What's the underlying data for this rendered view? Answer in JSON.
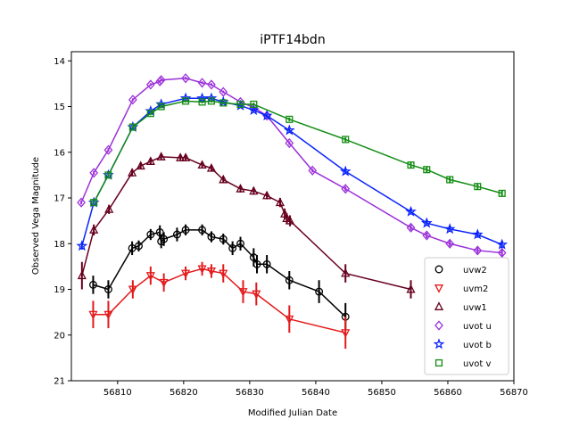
{
  "chart_data": {
    "type": "scatter",
    "title": "iPTF14bdn",
    "xlabel": "Modified Julian Date",
    "ylabel": "Observed Vega Magnitude",
    "xlim": [
      56803,
      56870
    ],
    "ylim": [
      21,
      13.8
    ],
    "y_inverted": true,
    "grid": false,
    "legend_position": "lower-right",
    "xticks": [
      56810,
      56820,
      56830,
      56840,
      56850,
      56860,
      56870
    ],
    "yticks": [
      14,
      15,
      16,
      17,
      18,
      19,
      20,
      21
    ],
    "series": [
      {
        "name": "uvw2",
        "color": "#000000",
        "marker": "circle",
        "x": [
          56806.3,
          56808.6,
          56812.2,
          56813.2,
          56815.0,
          56816.4,
          56816.6,
          56817.0,
          56819.0,
          56820.3,
          56822.8,
          56824.2,
          56826.0,
          56827.4,
          56828.6,
          56830.6,
          56831.1,
          56832.6,
          56836.0,
          56840.5,
          56844.5
        ],
        "y": [
          18.9,
          19.0,
          18.1,
          18.05,
          17.8,
          17.75,
          17.95,
          17.9,
          17.8,
          17.7,
          17.7,
          17.85,
          17.9,
          18.1,
          18.0,
          18.3,
          18.45,
          18.45,
          18.8,
          19.05,
          19.6
        ],
        "yerr": [
          0.2,
          0.2,
          0.15,
          0.12,
          0.12,
          0.15,
          0.15,
          0.15,
          0.15,
          0.12,
          0.12,
          0.12,
          0.12,
          0.15,
          0.15,
          0.2,
          0.2,
          0.2,
          0.2,
          0.25,
          0.3
        ]
      },
      {
        "name": "uvm2",
        "color": "#e31a1c",
        "marker": "triangle-down",
        "x": [
          56806.3,
          56808.6,
          56812.3,
          56815.0,
          56817.0,
          56820.3,
          56822.8,
          56824.2,
          56826.0,
          56829.0,
          56831.0,
          56836.0,
          56844.5
        ],
        "y": [
          19.55,
          19.55,
          19.0,
          18.7,
          18.85,
          18.65,
          18.55,
          18.6,
          18.65,
          19.05,
          19.1,
          19.65,
          19.95
        ],
        "yerr": [
          0.3,
          0.3,
          0.2,
          0.2,
          0.2,
          0.15,
          0.15,
          0.15,
          0.2,
          0.25,
          0.25,
          0.3,
          0.35
        ]
      },
      {
        "name": "uvw1",
        "color": "#67001f",
        "marker": "triangle-up",
        "x": [
          56804.6,
          56806.4,
          56808.7,
          56812.2,
          56813.5,
          56815.0,
          56816.6,
          56819.5,
          56820.3,
          56822.8,
          56824.2,
          56826.0,
          56828.6,
          56830.6,
          56832.6,
          56834.6,
          56835.3,
          56835.6,
          56836.1,
          56844.5,
          56854.4
        ],
        "y": [
          18.7,
          17.7,
          17.25,
          16.45,
          16.3,
          16.2,
          16.1,
          16.12,
          16.12,
          16.28,
          16.35,
          16.6,
          16.8,
          16.85,
          16.95,
          17.1,
          17.35,
          17.45,
          17.5,
          18.65,
          19.0
        ],
        "yerr": [
          0.3,
          0.12,
          0.1,
          0.08,
          0.07,
          0.07,
          0.06,
          0.06,
          0.06,
          0.06,
          0.06,
          0.07,
          0.08,
          0.08,
          0.08,
          0.1,
          0.12,
          0.12,
          0.12,
          0.2,
          0.2
        ]
      },
      {
        "name": "uvot u",
        "color": "#9b30d9",
        "marker": "diamond",
        "x": [
          56804.5,
          56806.4,
          56808.6,
          56812.3,
          56815.0,
          56816.4,
          56816.6,
          56820.3,
          56822.8,
          56824.2,
          56826.0,
          56828.6,
          56830.6,
          56832.6,
          56836.0,
          56839.5,
          56844.5,
          56854.4,
          56856.8,
          56860.3,
          56864.5,
          56868.2
        ],
        "y": [
          17.1,
          16.45,
          15.95,
          14.85,
          14.52,
          14.45,
          14.42,
          14.38,
          14.48,
          14.52,
          14.68,
          14.9,
          15.02,
          15.2,
          15.8,
          16.4,
          16.8,
          17.65,
          17.82,
          18.0,
          18.15,
          18.2
        ],
        "yerr": [
          0.04,
          0.04,
          0.04,
          0.03,
          0.03,
          0.03,
          0.03,
          0.03,
          0.03,
          0.03,
          0.03,
          0.03,
          0.03,
          0.03,
          0.04,
          0.04,
          0.05,
          0.06,
          0.06,
          0.06,
          0.07,
          0.07
        ]
      },
      {
        "name": "uvot b",
        "color": "#0b24fb",
        "marker": "star",
        "x": [
          56804.6,
          56806.4,
          56808.6,
          56812.3,
          56815.0,
          56816.6,
          56820.3,
          56822.8,
          56824.2,
          56826.0,
          56828.6,
          56830.6,
          56832.6,
          56836.0,
          56844.5,
          56854.4,
          56856.8,
          56860.3,
          56864.5,
          56868.2
        ],
        "y": [
          18.05,
          17.1,
          16.5,
          15.45,
          15.1,
          14.95,
          14.82,
          14.82,
          14.82,
          14.9,
          14.98,
          15.08,
          15.2,
          15.52,
          16.42,
          17.3,
          17.55,
          17.68,
          17.8,
          18.02
        ],
        "yerr": [
          0.08,
          0.05,
          0.04,
          0.03,
          0.03,
          0.03,
          0.03,
          0.03,
          0.03,
          0.03,
          0.03,
          0.03,
          0.03,
          0.04,
          0.05,
          0.06,
          0.06,
          0.06,
          0.07,
          0.08
        ]
      },
      {
        "name": "uvot v",
        "color": "#138d13",
        "marker": "square",
        "x": [
          56806.4,
          56808.6,
          56812.3,
          56815.0,
          56816.6,
          56820.3,
          56822.8,
          56824.2,
          56826.0,
          56828.6,
          56830.6,
          56836.0,
          56844.5,
          56854.4,
          56856.8,
          56860.3,
          56864.5,
          56868.2
        ],
        "y": [
          17.1,
          16.5,
          15.45,
          15.15,
          15.0,
          14.88,
          14.9,
          14.88,
          14.92,
          14.95,
          14.95,
          15.28,
          15.72,
          16.28,
          16.38,
          16.6,
          16.75,
          16.9
        ],
        "yerr": [
          0.06,
          0.05,
          0.04,
          0.04,
          0.04,
          0.03,
          0.03,
          0.03,
          0.03,
          0.03,
          0.03,
          0.04,
          0.05,
          0.06,
          0.06,
          0.06,
          0.07,
          0.07
        ]
      }
    ]
  }
}
